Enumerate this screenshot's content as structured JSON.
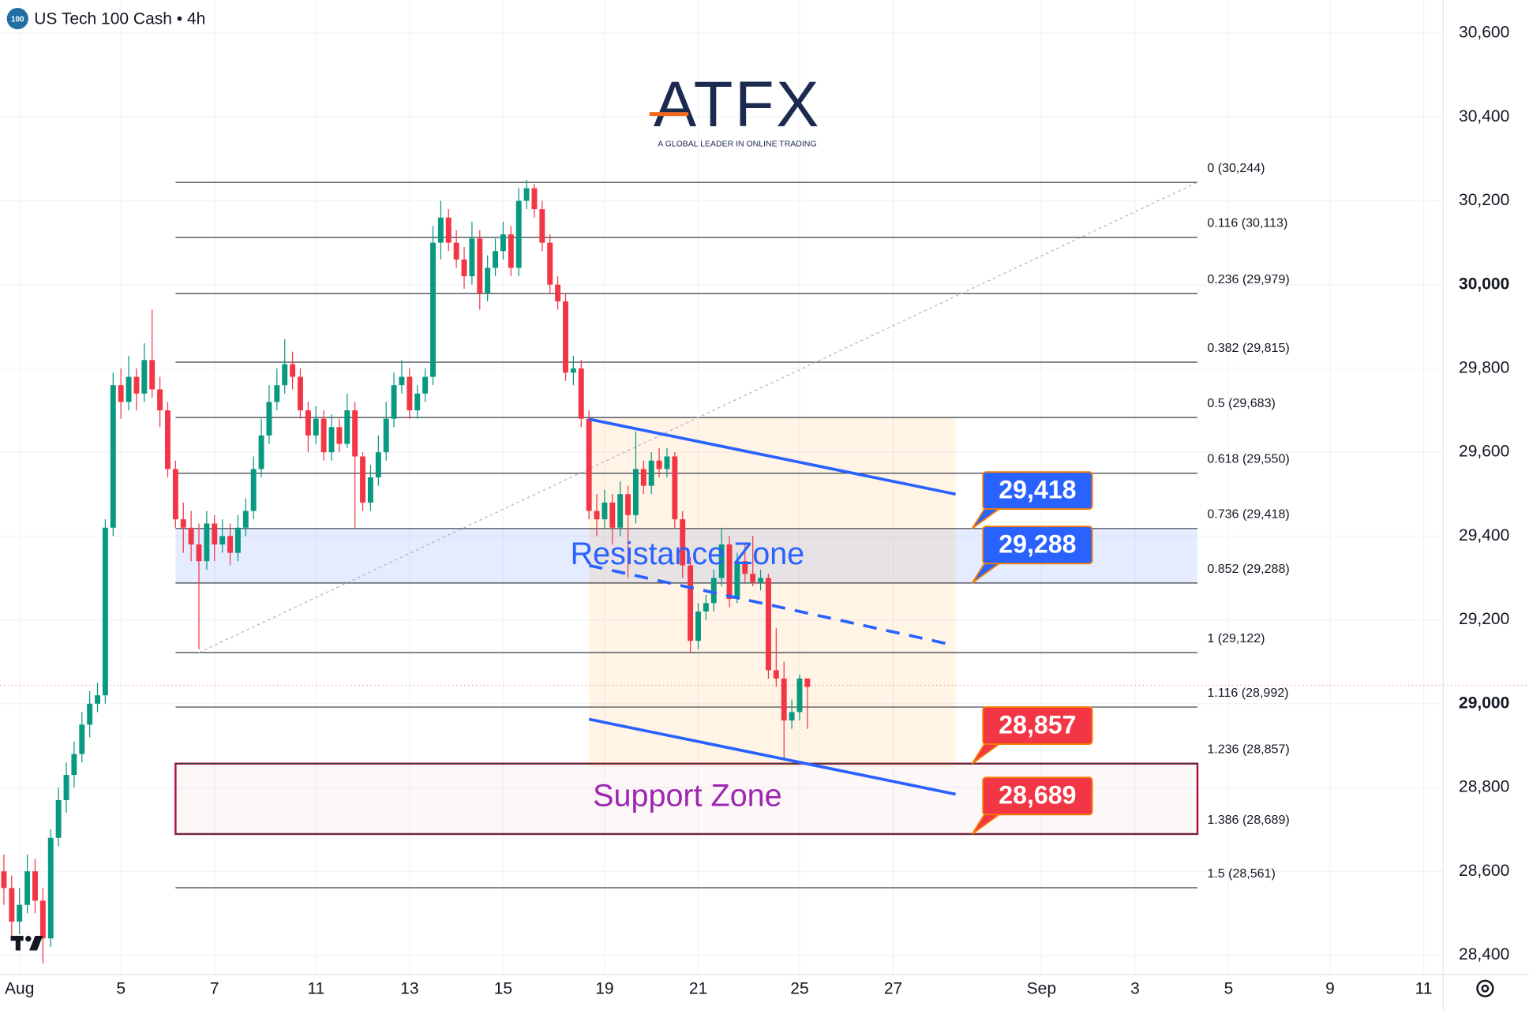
{
  "chart_data": {
    "type": "candlestick",
    "title": "US Tech 100 Cash • 4h",
    "symbol_icon": "100",
    "logo": "ATFX",
    "tagline": "A GLOBAL LEADER IN ONLINE TRADING",
    "up_color": "#089981",
    "down_color": "#f23645",
    "grid": true,
    "xlim": [
      -0.5,
      184.5
    ],
    "ylim": [
      28353,
      30679
    ],
    "xticks": [
      {
        "value": 2,
        "label": "Aug"
      },
      {
        "value": 15,
        "label": "5"
      },
      {
        "value": 27,
        "label": "7"
      },
      {
        "value": 40,
        "label": "11"
      },
      {
        "value": 52,
        "label": "13"
      },
      {
        "value": 64,
        "label": "15"
      },
      {
        "value": 77,
        "label": "19"
      },
      {
        "value": 89,
        "label": "21"
      },
      {
        "value": 102,
        "label": "25"
      },
      {
        "value": 114,
        "label": "27"
      },
      {
        "value": 133,
        "label": "Sep"
      },
      {
        "value": 145,
        "label": "3"
      },
      {
        "value": 157,
        "label": "5"
      },
      {
        "value": 170,
        "label": "9"
      },
      {
        "value": 182,
        "label": "11"
      }
    ],
    "yticks": [
      {
        "value": 28400,
        "label": "28,400"
      },
      {
        "value": 28600,
        "label": "28,600"
      },
      {
        "value": 28800,
        "label": "28,800"
      },
      {
        "value": 29000,
        "label": "29,000",
        "bold": true
      },
      {
        "value": 29200,
        "label": "29,200"
      },
      {
        "value": 29400,
        "label": "29,400"
      },
      {
        "value": 29600,
        "label": "29,600"
      },
      {
        "value": 29800,
        "label": "29,800"
      },
      {
        "value": 30000,
        "label": "30,000",
        "bold": true
      },
      {
        "value": 30200,
        "label": "30,200"
      },
      {
        "value": 30400,
        "label": "30,400"
      },
      {
        "value": 30600,
        "label": "30,600"
      }
    ],
    "candles": [
      [
        28600,
        28640,
        28520,
        28560
      ],
      [
        28560,
        28590,
        28440,
        28480
      ],
      [
        28480,
        28560,
        28450,
        28520
      ],
      [
        28520,
        28640,
        28500,
        28600
      ],
      [
        28600,
        28630,
        28500,
        28530
      ],
      [
        28530,
        28560,
        28380,
        28440
      ],
      [
        28440,
        28700,
        28420,
        28680
      ],
      [
        28680,
        28800,
        28660,
        28770
      ],
      [
        28770,
        28860,
        28740,
        28830
      ],
      [
        28830,
        28910,
        28800,
        28880
      ],
      [
        28880,
        28980,
        28860,
        28950
      ],
      [
        28950,
        29030,
        28920,
        29000
      ],
      [
        29000,
        29050,
        28980,
        29020
      ],
      [
        29020,
        29440,
        29000,
        29420
      ],
      [
        29420,
        29790,
        29400,
        29760
      ],
      [
        29760,
        29800,
        29680,
        29720
      ],
      [
        29720,
        29830,
        29700,
        29780
      ],
      [
        29780,
        29800,
        29700,
        29740
      ],
      [
        29740,
        29860,
        29720,
        29820
      ],
      [
        29820,
        29940,
        29730,
        29750
      ],
      [
        29750,
        29780,
        29660,
        29700
      ],
      [
        29700,
        29720,
        29540,
        29560
      ],
      [
        29560,
        29580,
        29420,
        29440
      ],
      [
        29440,
        29480,
        29360,
        29420
      ],
      [
        29420,
        29460,
        29340,
        29380
      ],
      [
        29380,
        29430,
        29130,
        29340
      ],
      [
        29340,
        29460,
        29320,
        29430
      ],
      [
        29430,
        29450,
        29340,
        29380
      ],
      [
        29380,
        29440,
        29360,
        29400
      ],
      [
        29400,
        29430,
        29330,
        29360
      ],
      [
        29360,
        29450,
        29340,
        29420
      ],
      [
        29420,
        29490,
        29400,
        29460
      ],
      [
        29460,
        29590,
        29440,
        29560
      ],
      [
        29560,
        29680,
        29540,
        29640
      ],
      [
        29640,
        29760,
        29620,
        29720
      ],
      [
        29720,
        29800,
        29700,
        29760
      ],
      [
        29760,
        29870,
        29740,
        29810
      ],
      [
        29810,
        29840,
        29750,
        29780
      ],
      [
        29780,
        29800,
        29680,
        29700
      ],
      [
        29700,
        29720,
        29600,
        29640
      ],
      [
        29640,
        29710,
        29620,
        29680
      ],
      [
        29680,
        29700,
        29580,
        29600
      ],
      [
        29600,
        29690,
        29580,
        29660
      ],
      [
        29660,
        29680,
        29600,
        29620
      ],
      [
        29620,
        29740,
        29610,
        29700
      ],
      [
        29700,
        29720,
        29420,
        29590
      ],
      [
        29590,
        29600,
        29460,
        29480
      ],
      [
        29480,
        29570,
        29460,
        29540
      ],
      [
        29540,
        29640,
        29520,
        29600
      ],
      [
        29600,
        29720,
        29580,
        29680
      ],
      [
        29680,
        29790,
        29660,
        29760
      ],
      [
        29760,
        29820,
        29740,
        29780
      ],
      [
        29780,
        29800,
        29680,
        29700
      ],
      [
        29700,
        29760,
        29680,
        29740
      ],
      [
        29740,
        29800,
        29720,
        29780
      ],
      [
        29780,
        30140,
        29760,
        30100
      ],
      [
        30100,
        30200,
        30060,
        30160
      ],
      [
        30160,
        30180,
        30080,
        30100
      ],
      [
        30100,
        30130,
        30040,
        30060
      ],
      [
        30060,
        30090,
        29990,
        30020
      ],
      [
        30020,
        30150,
        30000,
        30110
      ],
      [
        30110,
        30130,
        29940,
        29980
      ],
      [
        29980,
        30070,
        29960,
        30040
      ],
      [
        30040,
        30110,
        30020,
        30080
      ],
      [
        30080,
        30150,
        30060,
        30120
      ],
      [
        30120,
        30140,
        30020,
        30040
      ],
      [
        30040,
        30230,
        30020,
        30200
      ],
      [
        30200,
        30250,
        30180,
        30230
      ],
      [
        30230,
        30240,
        30160,
        30180
      ],
      [
        30180,
        30200,
        30080,
        30100
      ],
      [
        30100,
        30120,
        29980,
        30000
      ],
      [
        30000,
        30020,
        29940,
        29960
      ],
      [
        29960,
        29980,
        29770,
        29790
      ],
      [
        29790,
        29830,
        29760,
        29800
      ],
      [
        29800,
        29820,
        29660,
        29680
      ],
      [
        29680,
        29700,
        29440,
        29460
      ],
      [
        29460,
        29500,
        29400,
        29440
      ],
      [
        29440,
        29510,
        29420,
        29480
      ],
      [
        29480,
        29500,
        29380,
        29420
      ],
      [
        29420,
        29530,
        29400,
        29500
      ],
      [
        29500,
        29520,
        29300,
        29450
      ],
      [
        29450,
        29650,
        29430,
        29560
      ],
      [
        29560,
        29580,
        29500,
        29520
      ],
      [
        29520,
        29600,
        29500,
        29580
      ],
      [
        29580,
        29610,
        29540,
        29560
      ],
      [
        29560,
        29610,
        29540,
        29590
      ],
      [
        29590,
        29600,
        29420,
        29440
      ],
      [
        29440,
        29460,
        29300,
        29330
      ],
      [
        29330,
        29350,
        29120,
        29150
      ],
      [
        29150,
        29240,
        29130,
        29220
      ],
      [
        29220,
        29260,
        29200,
        29240
      ],
      [
        29240,
        29320,
        29220,
        29300
      ],
      [
        29300,
        29420,
        29280,
        29380
      ],
      [
        29380,
        29400,
        29230,
        29250
      ],
      [
        29250,
        29360,
        29240,
        29340
      ],
      [
        29340,
        29380,
        29290,
        29310
      ],
      [
        29310,
        29400,
        29280,
        29290
      ],
      [
        29290,
        29320,
        29270,
        29300
      ],
      [
        29300,
        29310,
        29060,
        29080
      ],
      [
        29080,
        29180,
        29040,
        29060
      ],
      [
        29060,
        29100,
        28870,
        28960
      ],
      [
        28960,
        29010,
        28940,
        28980
      ],
      [
        28980,
        29070,
        28960,
        29060
      ],
      [
        29060,
        29060,
        28940,
        29040
      ]
    ],
    "last_price": 29044,
    "fib_levels": [
      {
        "value": 30244,
        "label": "0 (30,244)"
      },
      {
        "value": 30113,
        "label": "0.116 (30,113)"
      },
      {
        "value": 29979,
        "label": "0.236 (29,979)"
      },
      {
        "value": 29815,
        "label": "0.382 (29,815)"
      },
      {
        "value": 29683,
        "label": "0.5 (29,683)"
      },
      {
        "value": 29550,
        "label": "0.618 (29,550)"
      },
      {
        "value": 29418,
        "label": "0.736 (29,418)"
      },
      {
        "value": 29288,
        "label": "0.852 (29,288)"
      },
      {
        "value": 29122,
        "label": "1 (29,122)"
      },
      {
        "value": 28992,
        "label": "1.116 (28,992)"
      },
      {
        "value": 28857,
        "label": "1.236 (28,857)"
      },
      {
        "value": 28689,
        "label": "1.386 (28,689)"
      },
      {
        "value": 28561,
        "label": "1.5 (28,561)"
      }
    ],
    "fib_trend": {
      "x": [
        25,
        153
      ],
      "y": [
        29122,
        30244
      ]
    },
    "channel_box": {
      "x": [
        75,
        122
      ],
      "y": [
        28850,
        29683
      ]
    },
    "channel_lines": [
      {
        "x": [
          75,
          122
        ],
        "y": [
          29679,
          29500
        ],
        "dashed": false
      },
      {
        "x": [
          75,
          122
        ],
        "y": [
          28963,
          28784
        ],
        "dashed": false
      },
      {
        "x": [
          75,
          120.7
        ],
        "y": [
          29330,
          29144
        ],
        "dashed": true
      }
    ],
    "zones": [
      {
        "label": "Resistance Zone",
        "range": [
          29288,
          29418
        ],
        "color": "#2962ff"
      },
      {
        "label": "Support Zone",
        "range": [
          28689,
          28857
        ],
        "color": "#9c27b0"
      }
    ],
    "price_labels": [
      {
        "value": 29418,
        "label": "29,418",
        "color": "#2962ff"
      },
      {
        "value": 29288,
        "label": "29,288",
        "color": "#2962ff"
      },
      {
        "value": 28857,
        "label": "28,857",
        "color": "#f23645"
      },
      {
        "value": 28689,
        "label": "28,689",
        "color": "#f23645"
      }
    ]
  }
}
